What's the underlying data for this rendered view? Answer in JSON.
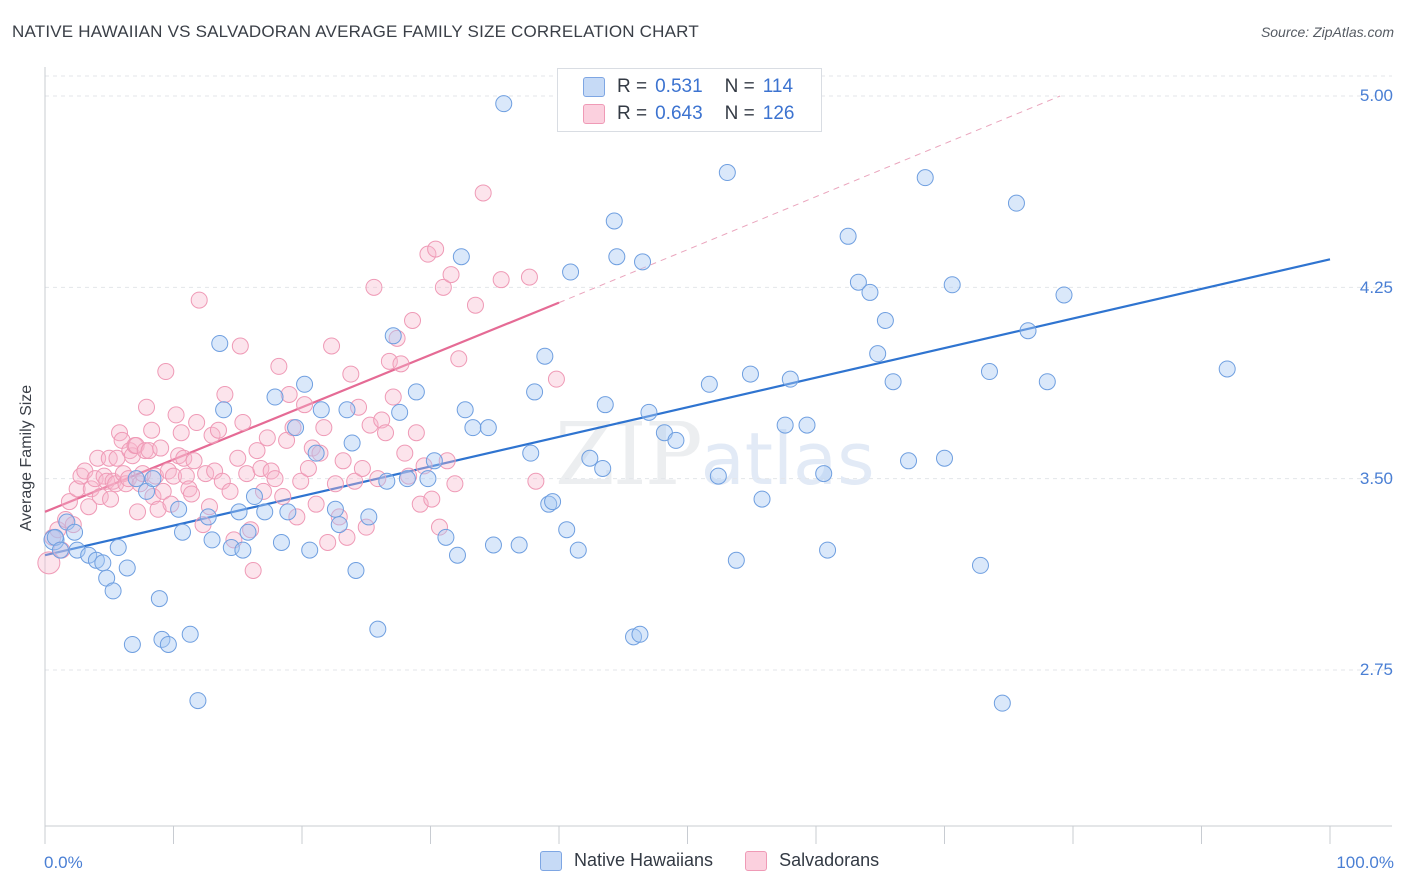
{
  "title": "NATIVE HAWAIIAN VS SALVADORAN AVERAGE FAMILY SIZE CORRELATION CHART",
  "source": "Source: ZipAtlas.com",
  "watermark": {
    "a": "ZIP",
    "b": "atlas"
  },
  "legend_stats": [
    {
      "r_label": "R =",
      "r_value": "0.531",
      "n_label": "N =",
      "n_value": "114",
      "color": "#a8c8f2"
    },
    {
      "r_label": "R =",
      "r_value": "0.643",
      "n_label": "N =",
      "n_value": "126",
      "color": "#f6b8cc"
    }
  ],
  "chart_data": {
    "type": "scatter",
    "title": "NATIVE HAWAIIAN VS SALVADORAN AVERAGE FAMILY SIZE CORRELATION CHART",
    "xlabel": "",
    "ylabel": "Average Family Size",
    "xlim": [
      0,
      100
    ],
    "ylim": [
      2.0,
      5.05
    ],
    "x_tick_labels": [
      "0.0%",
      "100.0%"
    ],
    "y_ticks": [
      2.75,
      3.5,
      4.25,
      5.0
    ],
    "y_tick_labels": [
      "2.75",
      "3.50",
      "4.25",
      "5.00"
    ],
    "grid": true,
    "legend_position": "bottom",
    "colors": {
      "blue": "#6f9fe0",
      "blue_line": "#2f74d0",
      "pink": "#ef8fae",
      "pink_line": "#e56b95"
    },
    "series": [
      {
        "name": "Native Hawaiians",
        "color": "#6f9fe0",
        "trend": {
          "x": [
            0,
            100
          ],
          "y": [
            3.2,
            4.36
          ]
        },
        "points": [
          [
            0.7,
            3.26
          ],
          [
            0.8,
            3.27
          ],
          [
            1.2,
            3.22
          ],
          [
            1.7,
            3.33
          ],
          [
            2.3,
            3.29
          ],
          [
            2.5,
            3.22
          ],
          [
            3.4,
            3.2
          ],
          [
            4.0,
            3.18
          ],
          [
            4.5,
            3.17
          ],
          [
            4.8,
            3.11
          ],
          [
            5.3,
            3.06
          ],
          [
            5.7,
            3.23
          ],
          [
            6.4,
            3.15
          ],
          [
            6.8,
            2.85
          ],
          [
            7.1,
            3.5
          ],
          [
            7.9,
            3.45
          ],
          [
            8.4,
            3.5
          ],
          [
            8.9,
            3.03
          ],
          [
            9.1,
            2.87
          ],
          [
            9.6,
            2.85
          ],
          [
            10.4,
            3.38
          ],
          [
            10.7,
            3.29
          ],
          [
            11.3,
            2.89
          ],
          [
            11.9,
            2.63
          ],
          [
            12.7,
            3.35
          ],
          [
            13.0,
            3.26
          ],
          [
            13.6,
            4.03
          ],
          [
            13.9,
            3.77
          ],
          [
            14.5,
            3.23
          ],
          [
            15.1,
            3.37
          ],
          [
            15.4,
            3.22
          ],
          [
            15.8,
            3.29
          ],
          [
            16.3,
            3.43
          ],
          [
            17.1,
            3.37
          ],
          [
            17.9,
            3.82
          ],
          [
            18.4,
            3.25
          ],
          [
            18.9,
            3.37
          ],
          [
            19.5,
            3.7
          ],
          [
            20.2,
            3.87
          ],
          [
            20.6,
            3.22
          ],
          [
            21.1,
            3.6
          ],
          [
            21.5,
            3.77
          ],
          [
            22.6,
            3.38
          ],
          [
            22.9,
            3.32
          ],
          [
            23.5,
            3.77
          ],
          [
            23.9,
            3.64
          ],
          [
            24.2,
            3.14
          ],
          [
            25.2,
            3.35
          ],
          [
            25.9,
            2.91
          ],
          [
            26.6,
            3.49
          ],
          [
            27.1,
            4.06
          ],
          [
            27.6,
            3.76
          ],
          [
            28.2,
            3.5
          ],
          [
            28.9,
            3.84
          ],
          [
            29.8,
            3.5
          ],
          [
            30.3,
            3.57
          ],
          [
            31.2,
            3.27
          ],
          [
            32.1,
            3.2
          ],
          [
            32.4,
            4.37
          ],
          [
            32.7,
            3.77
          ],
          [
            33.3,
            3.7
          ],
          [
            34.5,
            3.7
          ],
          [
            34.9,
            3.24
          ],
          [
            35.7,
            4.97
          ],
          [
            36.9,
            3.24
          ],
          [
            37.8,
            3.6
          ],
          [
            38.1,
            3.84
          ],
          [
            38.9,
            3.98
          ],
          [
            39.2,
            3.4
          ],
          [
            39.5,
            3.41
          ],
          [
            40.6,
            3.3
          ],
          [
            40.9,
            4.31
          ],
          [
            41.5,
            3.22
          ],
          [
            42.4,
            3.58
          ],
          [
            43.4,
            3.54
          ],
          [
            43.6,
            3.79
          ],
          [
            44.3,
            4.51
          ],
          [
            44.5,
            4.37
          ],
          [
            45.8,
            2.88
          ],
          [
            46.3,
            2.89
          ],
          [
            46.5,
            4.35
          ],
          [
            47.0,
            3.76
          ],
          [
            48.2,
            3.68
          ],
          [
            49.1,
            3.65
          ],
          [
            51.7,
            3.87
          ],
          [
            52.4,
            3.51
          ],
          [
            53.1,
            4.7
          ],
          [
            53.8,
            3.18
          ],
          [
            54.9,
            3.91
          ],
          [
            55.8,
            3.42
          ],
          [
            57.6,
            3.71
          ],
          [
            58.0,
            3.89
          ],
          [
            59.3,
            3.71
          ],
          [
            60.6,
            3.52
          ],
          [
            60.9,
            3.22
          ],
          [
            62.5,
            4.45
          ],
          [
            63.3,
            4.27
          ],
          [
            64.2,
            4.23
          ],
          [
            64.8,
            3.99
          ],
          [
            65.4,
            4.12
          ],
          [
            66.0,
            3.88
          ],
          [
            67.2,
            3.57
          ],
          [
            68.5,
            4.68
          ],
          [
            70.0,
            3.58
          ],
          [
            70.6,
            4.26
          ],
          [
            72.8,
            3.16
          ],
          [
            73.5,
            3.92
          ],
          [
            74.5,
            2.62
          ],
          [
            75.6,
            4.58
          ],
          [
            76.5,
            4.08
          ],
          [
            78.0,
            3.88
          ],
          [
            79.3,
            4.22
          ],
          [
            92.0,
            3.93
          ]
        ]
      },
      {
        "name": "Salvadorans",
        "color": "#ef8fae",
        "trend": {
          "x": [
            0,
            40
          ],
          "y": [
            3.37,
            4.19
          ]
        },
        "trend_extension": {
          "x": [
            40,
            79
          ],
          "y": [
            4.19,
            5.0
          ]
        },
        "points": [
          [
            0.3,
            3.17
          ],
          [
            0.6,
            3.27
          ],
          [
            1.0,
            3.3
          ],
          [
            1.3,
            3.22
          ],
          [
            1.6,
            3.34
          ],
          [
            1.9,
            3.41
          ],
          [
            2.2,
            3.32
          ],
          [
            2.5,
            3.46
          ],
          [
            2.8,
            3.51
          ],
          [
            3.1,
            3.53
          ],
          [
            3.4,
            3.39
          ],
          [
            3.6,
            3.46
          ],
          [
            3.9,
            3.5
          ],
          [
            4.1,
            3.58
          ],
          [
            4.3,
            3.43
          ],
          [
            4.6,
            3.51
          ],
          [
            4.8,
            3.49
          ],
          [
            5.0,
            3.58
          ],
          [
            5.1,
            3.42
          ],
          [
            5.3,
            3.49
          ],
          [
            5.5,
            3.48
          ],
          [
            5.6,
            3.58
          ],
          [
            5.8,
            3.68
          ],
          [
            6.0,
            3.65
          ],
          [
            6.1,
            3.52
          ],
          [
            6.3,
            3.48
          ],
          [
            6.5,
            3.5
          ],
          [
            6.6,
            3.61
          ],
          [
            6.8,
            3.59
          ],
          [
            7.0,
            3.63
          ],
          [
            7.1,
            3.63
          ],
          [
            7.2,
            3.37
          ],
          [
            7.4,
            3.48
          ],
          [
            7.6,
            3.52
          ],
          [
            7.8,
            3.61
          ],
          [
            7.9,
            3.78
          ],
          [
            8.1,
            3.61
          ],
          [
            8.3,
            3.69
          ],
          [
            8.4,
            3.43
          ],
          [
            8.6,
            3.51
          ],
          [
            8.8,
            3.38
          ],
          [
            9.0,
            3.62
          ],
          [
            9.2,
            3.45
          ],
          [
            9.4,
            3.92
          ],
          [
            9.6,
            3.53
          ],
          [
            9.8,
            3.4
          ],
          [
            10.0,
            3.51
          ],
          [
            10.2,
            3.75
          ],
          [
            10.4,
            3.59
          ],
          [
            10.6,
            3.68
          ],
          [
            10.8,
            3.58
          ],
          [
            11.0,
            3.51
          ],
          [
            11.2,
            3.46
          ],
          [
            11.4,
            3.44
          ],
          [
            11.6,
            3.57
          ],
          [
            11.8,
            3.72
          ],
          [
            12.0,
            4.2
          ],
          [
            12.3,
            3.32
          ],
          [
            12.5,
            3.52
          ],
          [
            12.8,
            3.39
          ],
          [
            13.0,
            3.67
          ],
          [
            13.2,
            3.53
          ],
          [
            13.5,
            3.69
          ],
          [
            13.8,
            3.49
          ],
          [
            14.0,
            3.83
          ],
          [
            14.4,
            3.45
          ],
          [
            14.7,
            3.26
          ],
          [
            15.0,
            3.58
          ],
          [
            15.2,
            4.02
          ],
          [
            15.4,
            3.72
          ],
          [
            15.7,
            3.52
          ],
          [
            16.0,
            3.3
          ],
          [
            16.2,
            3.14
          ],
          [
            16.5,
            3.61
          ],
          [
            16.8,
            3.54
          ],
          [
            17.0,
            3.45
          ],
          [
            17.3,
            3.66
          ],
          [
            17.6,
            3.53
          ],
          [
            17.9,
            3.5
          ],
          [
            18.2,
            3.94
          ],
          [
            18.5,
            3.43
          ],
          [
            18.8,
            3.65
          ],
          [
            19.0,
            3.83
          ],
          [
            19.3,
            3.7
          ],
          [
            19.6,
            3.35
          ],
          [
            19.9,
            3.49
          ],
          [
            20.2,
            3.79
          ],
          [
            20.5,
            3.54
          ],
          [
            20.8,
            3.62
          ],
          [
            21.1,
            3.4
          ],
          [
            21.4,
            3.6
          ],
          [
            21.7,
            3.7
          ],
          [
            22.0,
            3.25
          ],
          [
            22.3,
            4.02
          ],
          [
            22.6,
            3.48
          ],
          [
            22.9,
            3.35
          ],
          [
            23.2,
            3.57
          ],
          [
            23.5,
            3.27
          ],
          [
            23.8,
            3.91
          ],
          [
            24.1,
            3.49
          ],
          [
            24.4,
            3.78
          ],
          [
            24.7,
            3.54
          ],
          [
            25.0,
            3.31
          ],
          [
            25.3,
            3.71
          ],
          [
            25.6,
            4.25
          ],
          [
            25.9,
            3.5
          ],
          [
            26.2,
            3.73
          ],
          [
            26.5,
            3.68
          ],
          [
            26.8,
            3.96
          ],
          [
            27.1,
            3.82
          ],
          [
            27.4,
            4.05
          ],
          [
            27.7,
            3.95
          ],
          [
            28.0,
            3.6
          ],
          [
            28.3,
            3.51
          ],
          [
            28.6,
            4.12
          ],
          [
            28.9,
            3.68
          ],
          [
            29.2,
            3.4
          ],
          [
            29.5,
            3.55
          ],
          [
            29.8,
            4.38
          ],
          [
            30.1,
            3.42
          ],
          [
            30.4,
            4.4
          ],
          [
            30.7,
            3.31
          ],
          [
            31.0,
            4.25
          ],
          [
            31.3,
            3.57
          ],
          [
            31.6,
            4.3
          ],
          [
            31.9,
            3.48
          ],
          [
            32.2,
            3.97
          ],
          [
            33.5,
            4.18
          ],
          [
            34.1,
            4.62
          ],
          [
            35.5,
            4.28
          ],
          [
            37.7,
            4.29
          ],
          [
            38.2,
            3.49
          ],
          [
            39.8,
            3.89
          ]
        ]
      }
    ]
  }
}
